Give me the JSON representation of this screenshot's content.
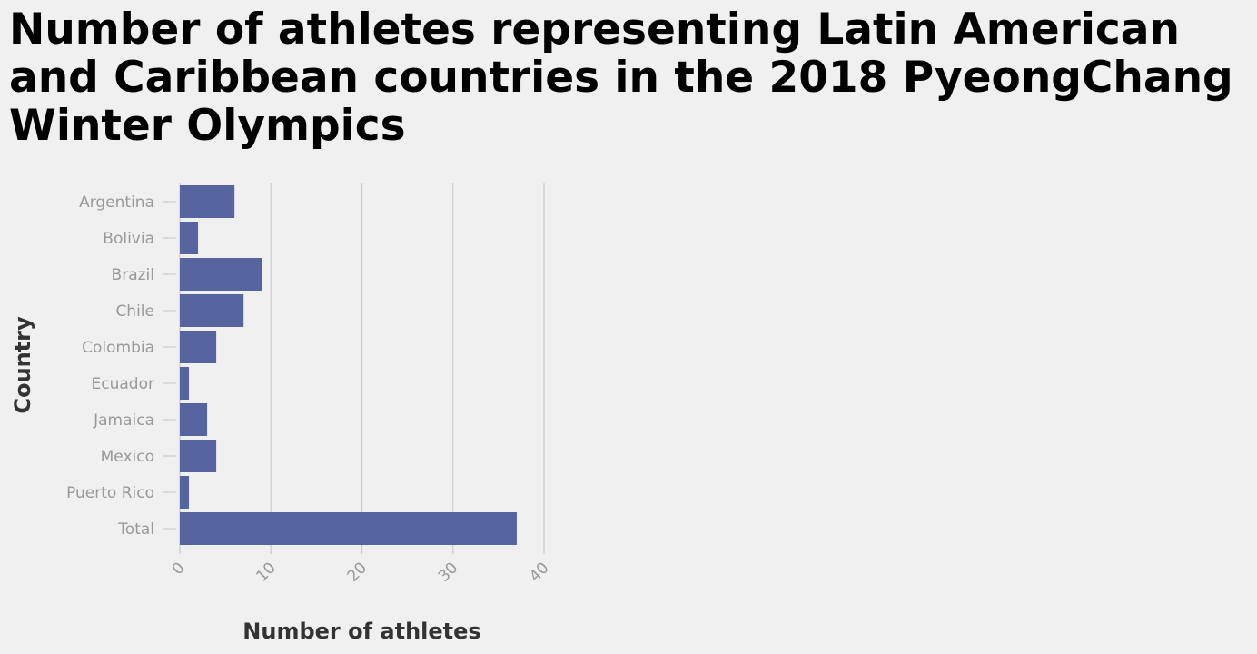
{
  "chart_data": {
    "type": "bar",
    "orientation": "horizontal",
    "title": "Number of athletes representing Latin American and Caribbean countries in the 2018 PyeongChang Winter Olympics",
    "xlabel": "Number of athletes",
    "ylabel": "Country",
    "categories": [
      "Argentina",
      "Bolivia",
      "Brazil",
      "Chile",
      "Colombia",
      "Ecuador",
      "Jamaica",
      "Mexico",
      "Puerto Rico",
      "Total"
    ],
    "values": [
      6,
      2,
      9,
      7,
      4,
      1,
      3,
      4,
      1,
      37
    ],
    "xlim": [
      0,
      40
    ],
    "xticks": [
      0,
      10,
      20,
      30,
      40
    ],
    "grid": true,
    "bar_color": "#5664a0",
    "grid_color": "#cccccc"
  }
}
